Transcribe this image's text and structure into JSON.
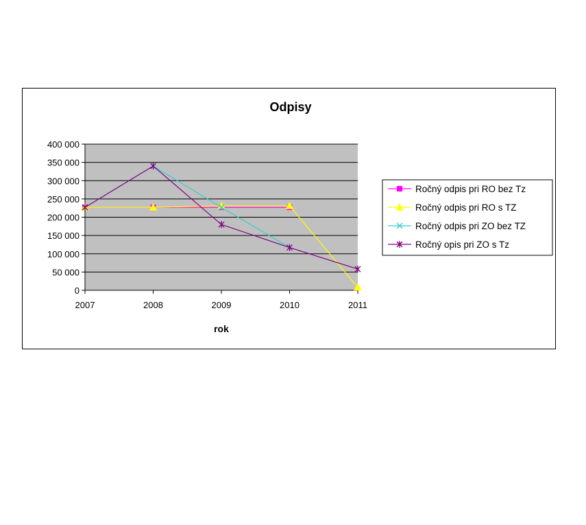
{
  "chart_data": {
    "type": "line",
    "title": "Odpisy",
    "xlabel": "rok",
    "ylabel": "",
    "categories": [
      "2007",
      "2008",
      "2009",
      "2010",
      "2011"
    ],
    "ylim": [
      0,
      400000
    ],
    "yticks": [
      0,
      50000,
      100000,
      150000,
      200000,
      250000,
      300000,
      350000,
      400000
    ],
    "ytick_labels": [
      "0",
      "50 000",
      "100 000",
      "150 000",
      "200 000",
      "250 000",
      "300 000",
      "350 000",
      "400 000"
    ],
    "grid": true,
    "plot_background": "#c0c0c0",
    "legend_position": "right",
    "series": [
      {
        "name": "Ročný odpis pri RO bez Tz",
        "color": "#ff00ff",
        "marker": "square",
        "values": [
          227000,
          227000,
          227000,
          227000,
          null
        ]
      },
      {
        "name": "Ročný odpis pri RO s TZ",
        "color": "#ffff00",
        "marker": "triangle",
        "values": [
          227000,
          227000,
          231000,
          231000,
          8000
        ]
      },
      {
        "name": "Ročný odpis pri ZO bez TZ",
        "color": "#33cccc",
        "marker": "x",
        "values": [
          227000,
          340000,
          227000,
          117000,
          null
        ]
      },
      {
        "name": "Ročný opis pri ZO s Tz",
        "color": "#800080",
        "marker": "star",
        "values": [
          227000,
          340000,
          180000,
          117000,
          58000
        ]
      }
    ]
  }
}
